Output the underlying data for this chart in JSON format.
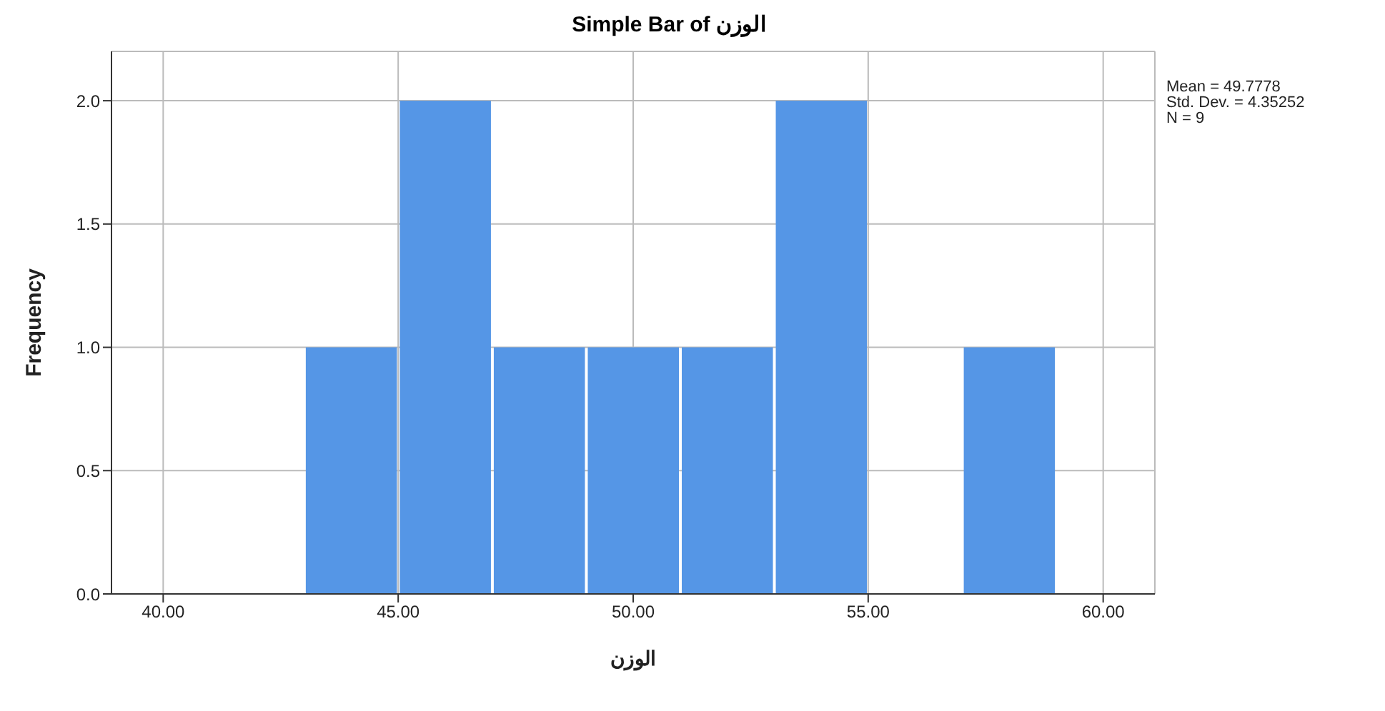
{
  "chart_data": {
    "type": "histogram",
    "title": "Simple Bar of الوزن",
    "xlabel": "الوزن",
    "ylabel": "Frequency",
    "bins": [
      43,
      45,
      47,
      49,
      51,
      53,
      55,
      57,
      59
    ],
    "values": [
      1,
      2,
      1,
      1,
      1,
      2,
      0,
      1
    ],
    "color": "#5596e6",
    "xlim": [
      38.9,
      61.1
    ],
    "xticks": [
      {
        "value": 40,
        "label": "40.00"
      },
      {
        "value": 45,
        "label": "45.00"
      },
      {
        "value": 50,
        "label": "50.00"
      },
      {
        "value": 55,
        "label": "55.00"
      },
      {
        "value": 60,
        "label": "60.00"
      }
    ],
    "ylim": [
      0,
      2.2
    ],
    "yticks": [
      {
        "value": 0,
        "label": "0.0"
      },
      {
        "value": 0.5,
        "label": "0.5"
      },
      {
        "value": 1,
        "label": "1.0"
      },
      {
        "value": 1.5,
        "label": "1.5"
      },
      {
        "value": 2,
        "label": "2.0"
      }
    ],
    "grid": true,
    "annotations": [
      "Mean = 49.7778",
      "Std. Dev. = 4.35252",
      "N = 9"
    ]
  }
}
